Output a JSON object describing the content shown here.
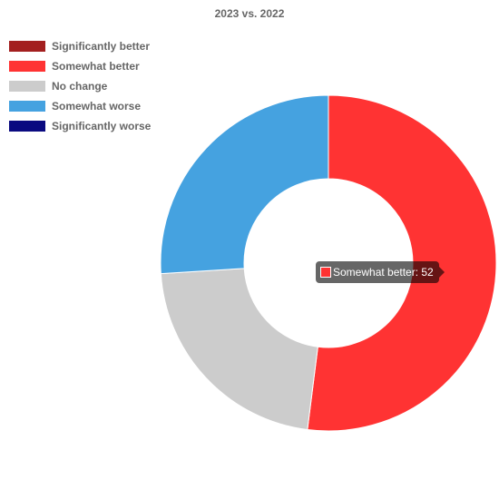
{
  "chart_data": {
    "type": "pie",
    "variant": "doughnut",
    "title": "2023 vs. 2022",
    "categories": [
      "Significantly better",
      "Somewhat better",
      "No change",
      "Somewhat worse",
      "Significantly worse"
    ],
    "values": [
      0,
      52,
      22,
      26,
      0
    ],
    "colors": [
      "#a31f1f",
      "#ff3333",
      "#cccccc",
      "#45a2e0",
      "#0a0a80"
    ],
    "legend": "top-left",
    "tooltip": {
      "series_index": 1,
      "text": "Somewhat better: 52",
      "color": "#ff3333"
    }
  }
}
